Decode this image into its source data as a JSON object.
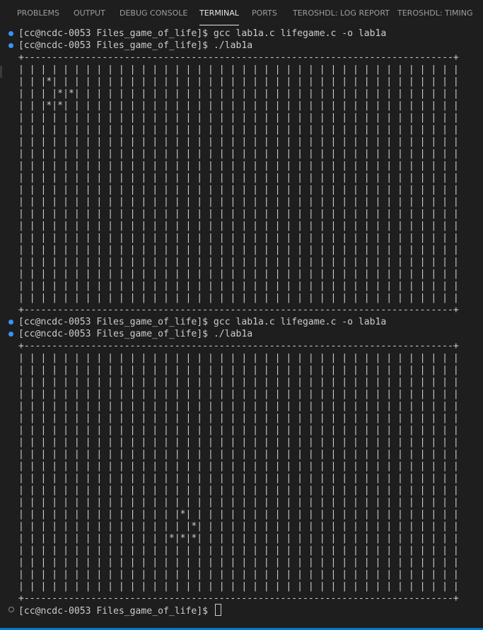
{
  "tabs": [
    {
      "label": "PROBLEMS",
      "active": false
    },
    {
      "label": "OUTPUT",
      "active": false
    },
    {
      "label": "DEBUG CONSOLE",
      "active": false
    },
    {
      "label": "TERMINAL",
      "active": true
    },
    {
      "label": "PORTS",
      "active": false
    },
    {
      "label": "TEROSHDL: LOG REPORT",
      "active": false
    },
    {
      "label": "TEROSHDL: TIMING",
      "active": false
    }
  ],
  "terminal": {
    "prompt": "[cc@ncdc-0053 Files_game_of_life]$ ",
    "commands": {
      "compile": "gcc lab1a.c lifegame.c -o lab1a",
      "run": "./lab1a"
    },
    "run1": {
      "border_top": "+-----------------------------------------------------------------------------+",
      "rows": [
        "| | | | | | | | | | | | | | | | | | | | | | | | | | | | | | | | | | | | | | | |",
        "| | |*| | | | | | | | | | | | | | | | | | | | | | | | | | | | | | | | | | | | |",
        "| | | |*|*| | | | | | | | | | | | | | | | | | | | | | | | | | | | | | | | | | |",
        "| | |*|*| | | | | | | | | | | | | | | | | | | | | | | | | | | | | | | | | | | |",
        "| | | | | | | | | | | | | | | | | | | | | | | | | | | | | | | | | | | | | | | |",
        "| | | | | | | | | | | | | | | | | | | | | | | | | | | | | | | | | | | | | | | |",
        "| | | | | | | | | | | | | | | | | | | | | | | | | | | | | | | | | | | | | | | |",
        "| | | | | | | | | | | | | | | | | | | | | | | | | | | | | | | | | | | | | | | |",
        "| | | | | | | | | | | | | | | | | | | | | | | | | | | | | | | | | | | | | | | |",
        "| | | | | | | | | | | | | | | | | | | | | | | | | | | | | | | | | | | | | | | |",
        "| | | | | | | | | | | | | | | | | | | | | | | | | | | | | | | | | | | | | | | |",
        "| | | | | | | | | | | | | | | | | | | | | | | | | | | | | | | | | | | | | | | |",
        "| | | | | | | | | | | | | | | | | | | | | | | | | | | | | | | | | | | | | | | |",
        "| | | | | | | | | | | | | | | | | | | | | | | | | | | | | | | | | | | | | | | |",
        "| | | | | | | | | | | | | | | | | | | | | | | | | | | | | | | | | | | | | | | |",
        "| | | | | | | | | | | | | | | | | | | | | | | | | | | | | | | | | | | | | | | |",
        "| | | | | | | | | | | | | | | | | | | | | | | | | | | | | | | | | | | | | | | |",
        "| | | | | | | | | | | | | | | | | | | | | | | | | | | | | | | | | | | | | | | |",
        "| | | | | | | | | | | | | | | | | | | | | | | | | | | | | | | | | | | | | | | |",
        "| | | | | | | | | | | | | | | | | | | | | | | | | | | | | | | | | | | | | | | |"
      ],
      "border_bottom": "+-----------------------------------------------------------------------------+"
    },
    "run2": {
      "border_top": "+-----------------------------------------------------------------------------+",
      "rows": [
        "| | | | | | | | | | | | | | | | | | | | | | | | | | | | | | | | | | | | | | | |",
        "| | | | | | | | | | | | | | | | | | | | | | | | | | | | | | | | | | | | | | | |",
        "| | | | | | | | | | | | | | | | | | | | | | | | | | | | | | | | | | | | | | | |",
        "| | | | | | | | | | | | | | | | | | | | | | | | | | | | | | | | | | | | | | | |",
        "| | | | | | | | | | | | | | | | | | | | | | | | | | | | | | | | | | | | | | | |",
        "| | | | | | | | | | | | | | | | | | | | | | | | | | | | | | | | | | | | | | | |",
        "| | | | | | | | | | | | | | | | | | | | | | | | | | | | | | | | | | | | | | | |",
        "| | | | | | | | | | | | | | | | | | | | | | | | | | | | | | | | | | | | | | | |",
        "| | | | | | | | | | | | | | | | | | | | | | | | | | | | | | | | | | | | | | | |",
        "| | | | | | | | | | | | | | | | | | | | | | | | | | | | | | | | | | | | | | | |",
        "| | | | | | | | | | | | | | | | | | | | | | | | | | | | | | | | | | | | | | | |",
        "| | | | | | | | | | | | | | | | | | | | | | | | | | | | | | | | | | | | | | | |",
        "| | | | | | | | | | | | | | | | | | | | | | | | | | | | | | | | | | | | | | | |",
        "| | | | | | | | | | | | | | |*| | | | | | | | | | | | | | | | | | | | | | | | |",
        "| | | | | | | | | | | | | | | |*| | | | | | | | | | | | | | | | | | | | | | | |",
        "| | | | | | | | | | | | | |*|*|*| | | | | | | | | | | | | | | | | | | | | | | |",
        "| | | | | | | | | | | | | | | | | | | | | | | | | | | | | | | | | | | | | | | |",
        "| | | | | | | | | | | | | | | | | | | | | | | | | | | | | | | | | | | | | | | |",
        "| | | | | | | | | | | | | | | | | | | | | | | | | | | | | | | | | | | | | | | |",
        "| | | | | | | | | | | | | | | | | | | | | | | | | | | | | | | | | | | | | | | |"
      ],
      "border_bottom": "+-----------------------------------------------------------------------------+"
    }
  },
  "colors": {
    "background": "#1e1e1e",
    "text": "#cccccc",
    "tab_inactive": "#9d9d9d",
    "tab_active": "#e7e7e7",
    "dot": "#3794ff",
    "statusbar": "#007acc"
  }
}
